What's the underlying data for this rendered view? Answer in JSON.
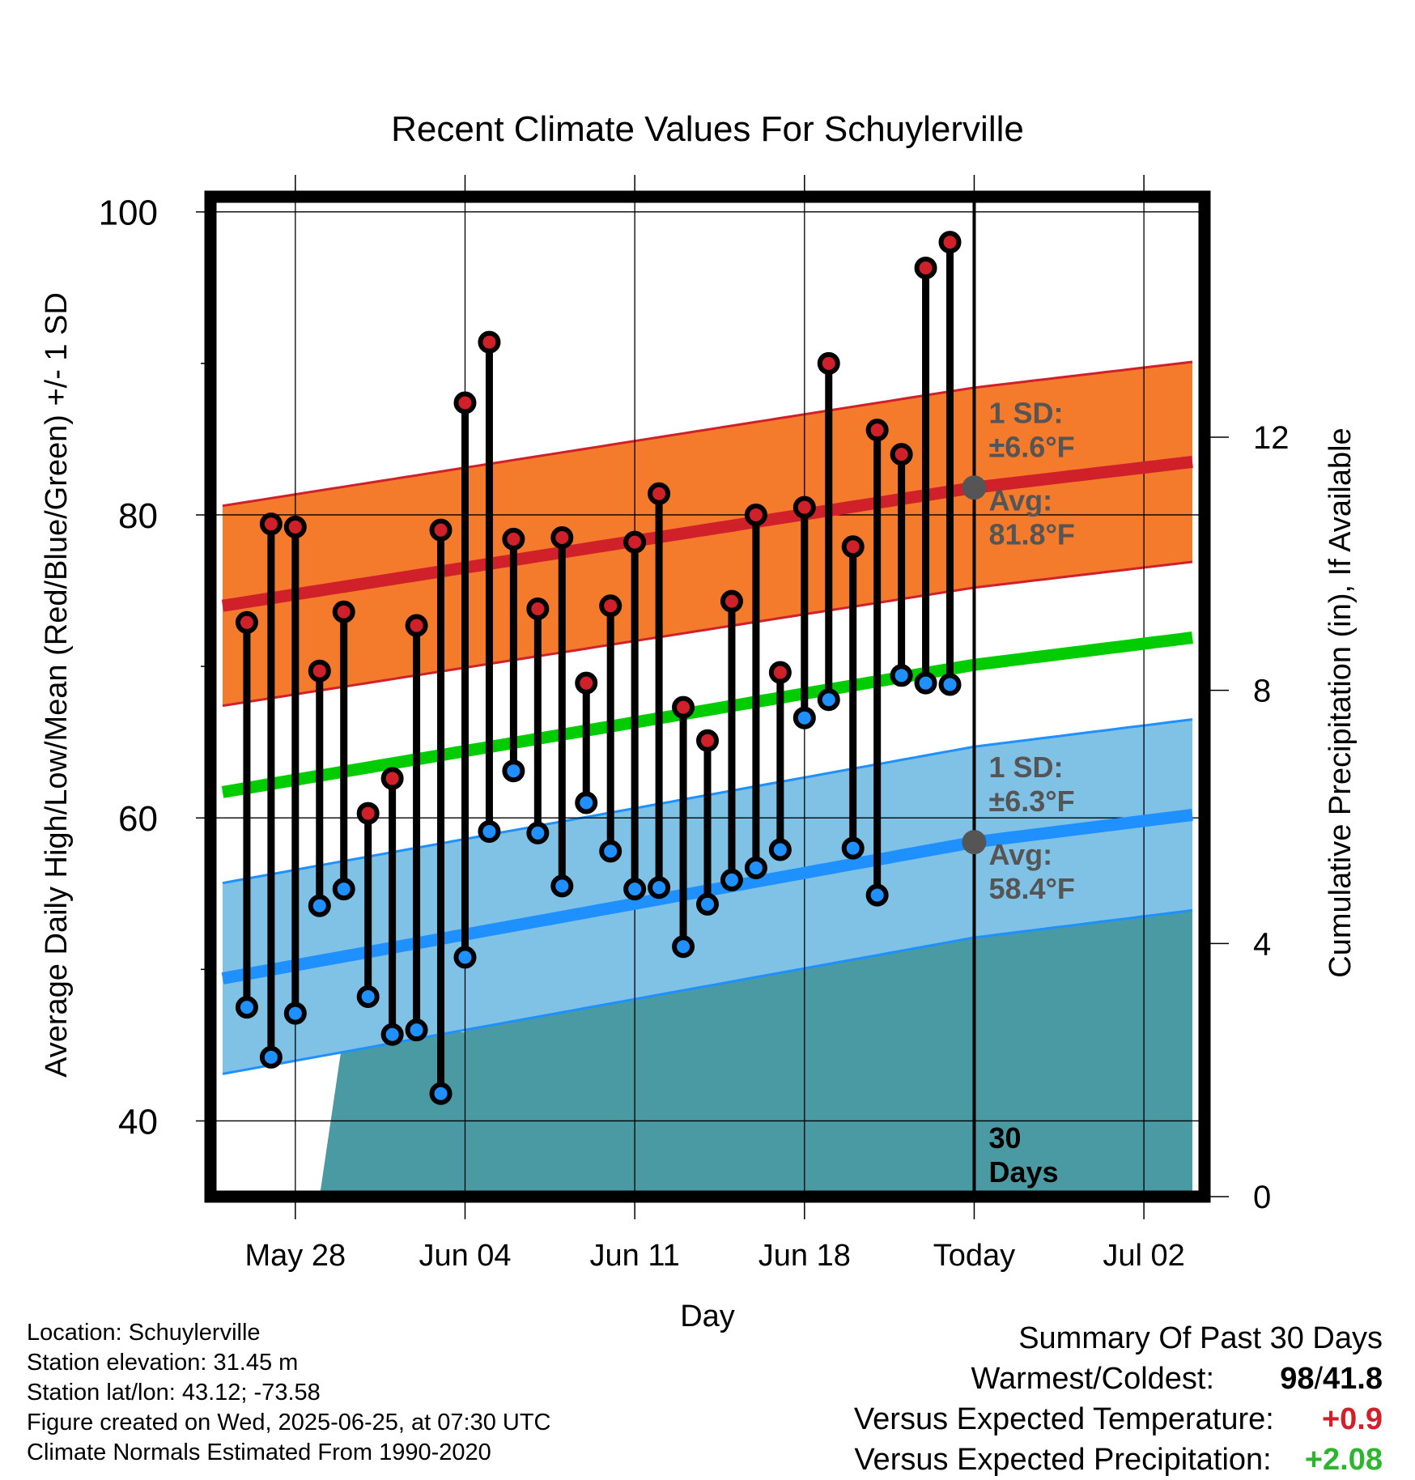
{
  "chart_data": {
    "type": "line",
    "title": "Recent Climate Values For Schuylerville",
    "xlabel": "Day",
    "ylabel": "Average Daily High/Low/Mean (Red/Blue/Green) +/- 1 SD",
    "y2label": "Cumulative Precipitation (in), If Available",
    "ylim": [
      35,
      101
    ],
    "y2lim": [
      0,
      15.8
    ],
    "yticks": [
      "40",
      "60",
      "80",
      "100"
    ],
    "y2ticks": [
      "0",
      "4",
      "8",
      "12"
    ],
    "x_ticks": [
      "May 28",
      "Jun 04",
      "Jun 11",
      "Jun 18",
      "Today",
      "Jul 02"
    ],
    "x_tick_days": [
      3,
      10,
      17,
      24,
      31,
      38
    ],
    "xlim": [
      -0.5,
      40.5
    ],
    "grid": true,
    "days": [
      1,
      2,
      3,
      4,
      5,
      6,
      7,
      8,
      9,
      10,
      11,
      12,
      13,
      14,
      15,
      16,
      17,
      18,
      19,
      20,
      21,
      22,
      23,
      24,
      25,
      26,
      27,
      28,
      29,
      30
    ],
    "highs": [
      72.9,
      79.4,
      79.2,
      69.7,
      73.6,
      60.3,
      62.6,
      72.7,
      79.0,
      87.4,
      91.4,
      78.4,
      73.8,
      78.5,
      68.9,
      74.0,
      78.2,
      81.4,
      67.3,
      65.1,
      74.3,
      80.0,
      69.6,
      80.5,
      90.0,
      77.9,
      85.6,
      84.0,
      96.3,
      98.0
    ],
    "lows": [
      47.5,
      44.2,
      47.1,
      54.2,
      55.3,
      48.2,
      45.7,
      46.0,
      41.8,
      50.8,
      59.1,
      63.1,
      59.0,
      55.5,
      61.0,
      57.8,
      55.3,
      55.4,
      51.5,
      54.3,
      55.9,
      56.7,
      57.9,
      66.6,
      67.8,
      58.0,
      54.9,
      69.4,
      68.9,
      68.8
    ],
    "normal_high_avg": [
      74.0,
      81.8,
      83.5
    ],
    "normal_low_avg": [
      49.4,
      58.4,
      60.2
    ],
    "normal_mean": [
      61.7,
      70.1,
      71.9
    ],
    "normal_curve_days": [
      0,
      31,
      40
    ],
    "high_sd": 6.6,
    "low_sd": 6.3,
    "precip_days": [
      4,
      5,
      6,
      7,
      8,
      9,
      10,
      11,
      12,
      13,
      14,
      15,
      16,
      17,
      18,
      19,
      20,
      21,
      22,
      23,
      24,
      25,
      26,
      27,
      28,
      29,
      30,
      40
    ],
    "precip_cumulative": [
      0,
      2.6,
      2.6,
      2.6,
      2.6,
      2.6,
      2.6,
      3.1,
      3.4,
      4.9,
      5.0,
      5.4,
      5.7,
      5.7,
      5.7,
      5.8,
      5.8,
      5.8,
      5.9,
      5.9,
      6.0,
      6.0,
      6.0,
      6.3,
      6.3,
      6.3,
      6.3,
      6.3
    ],
    "colors": {
      "high": "#d0202a",
      "low": "#1e90ff",
      "mean": "#00cc00",
      "high_band": "#f47a2c",
      "low_band": "#80c1e6",
      "precip": "#4a9aa4",
      "annotation": "#555555"
    },
    "annotations": {
      "high_sd_label": "1 SD:",
      "high_sd_value": "±6.6°F",
      "high_avg_label": "Avg:",
      "high_avg_value": "81.8°F",
      "low_sd_label": "1 SD:",
      "low_sd_value": "±6.3°F",
      "low_avg_label": "Avg:",
      "low_avg_value": "58.4°F",
      "days_line1": "30",
      "days_line2": "Days"
    }
  },
  "info": {
    "location": "Location: Schuylerville",
    "elevation": "Station elevation: 31.45 m",
    "latlon": "Station lat/lon: 43.12; -73.58",
    "created": "Figure created on Wed, 2025-06-25, at 07:30 UTC",
    "normals": "Climate Normals Estimated From 1990-2020"
  },
  "summary": {
    "heading": "Summary Of Past 30 Days",
    "warmest_label": "Warmest/Coldest:",
    "warmest_value": "98",
    "coldest_value": "41.8",
    "temp_label": "Versus Expected Temperature:",
    "temp_value": "+0.9",
    "precip_label": "Versus Expected Precipitation:",
    "precip_value": "+2.08",
    "temp_color": "#d0202a",
    "precip_color": "#2db52d"
  }
}
